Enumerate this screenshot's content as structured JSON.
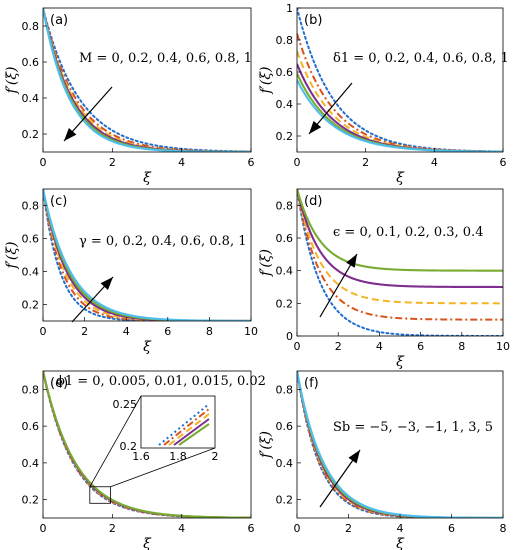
{
  "figure": {
    "colors": {
      "blue": "#1f6fd1",
      "red": "#d9531e",
      "yellow": "#f5b326",
      "purple": "#7e2f8e",
      "green": "#77ac30",
      "cyan": "#4dbeee"
    }
  },
  "chart_data": [
    {
      "type": "line",
      "panel": "(a)",
      "xlabel": "ξ",
      "ylabel": "f′(ξ)",
      "xlim": [
        0,
        6
      ],
      "ylim": [
        0.1,
        0.9
      ],
      "xticks": [
        0,
        2,
        4,
        6
      ],
      "yticks": [
        0.2,
        0.4,
        0.6,
        0.8
      ],
      "xtick_labels": [
        "0",
        "2",
        "4",
        "6"
      ],
      "ytick_labels": [
        "0.2",
        "0.4",
        "0.6",
        "0.8"
      ],
      "annotation": "M = 0, 0.2, 0.4, 0.6, 0.8, 1",
      "arrow_direction": "down-left",
      "series": [
        {
          "color": "blue",
          "style": "dotted",
          "start": 0.9,
          "end": 0.1,
          "decay": 0.95
        },
        {
          "color": "red",
          "style": "dashdot",
          "start": 0.9,
          "end": 0.1,
          "decay": 1.05
        },
        {
          "color": "yellow",
          "style": "dashed",
          "start": 0.9,
          "end": 0.1,
          "decay": 1.12
        },
        {
          "color": "purple",
          "style": "solid",
          "start": 0.9,
          "end": 0.1,
          "decay": 1.18
        },
        {
          "color": "green",
          "style": "solid",
          "start": 0.9,
          "end": 0.1,
          "decay": 1.24
        },
        {
          "color": "cyan",
          "style": "solid",
          "start": 0.9,
          "end": 0.1,
          "decay": 1.3
        }
      ]
    },
    {
      "type": "line",
      "panel": "(b)",
      "xlabel": "ξ",
      "ylabel": "f′(ξ)",
      "xlim": [
        0,
        6
      ],
      "ylim": [
        0.1,
        1.0
      ],
      "xticks": [
        0,
        2,
        4,
        6
      ],
      "yticks": [
        0.2,
        0.4,
        0.6,
        0.8,
        1.0
      ],
      "xtick_labels": [
        "0",
        "2",
        "4",
        "6"
      ],
      "ytick_labels": [
        "0.2",
        "0.4",
        "0.6",
        "0.8",
        "1"
      ],
      "annotation": "δ1 = 0, 0.2, 0.4, 0.6, 0.8, 1",
      "arrow_direction": "down-left",
      "series": [
        {
          "color": "blue",
          "style": "dotted",
          "start": 1.0,
          "end": 0.1,
          "decay": 0.95
        },
        {
          "color": "red",
          "style": "dashdot",
          "start": 0.84,
          "end": 0.1,
          "decay": 0.95
        },
        {
          "color": "yellow",
          "style": "dashed",
          "start": 0.73,
          "end": 0.1,
          "decay": 0.95
        },
        {
          "color": "purple",
          "style": "solid",
          "start": 0.65,
          "end": 0.1,
          "decay": 0.95
        },
        {
          "color": "green",
          "style": "solid",
          "start": 0.59,
          "end": 0.1,
          "decay": 0.95
        },
        {
          "color": "cyan",
          "style": "solid",
          "start": 0.55,
          "end": 0.1,
          "decay": 0.95
        }
      ]
    },
    {
      "type": "line",
      "panel": "(c)",
      "xlabel": "ξ",
      "ylabel": "f′(ξ)",
      "xlim": [
        0,
        10
      ],
      "ylim": [
        0.1,
        0.9
      ],
      "xticks": [
        0,
        2,
        4,
        6,
        8,
        10
      ],
      "yticks": [
        0.2,
        0.4,
        0.6,
        0.8
      ],
      "xtick_labels": [
        "0",
        "2",
        "4",
        "6",
        "8",
        "10"
      ],
      "ytick_labels": [
        "0.2",
        "0.4",
        "0.6",
        "0.8"
      ],
      "annotation": "γ = 0, 0.2, 0.4, 0.6, 0.8, 1",
      "arrow_direction": "up-right",
      "series": [
        {
          "color": "blue",
          "style": "dotted",
          "start": 0.9,
          "end": 0.1,
          "decay": 1.2
        },
        {
          "color": "red",
          "style": "dashdot",
          "start": 0.9,
          "end": 0.1,
          "decay": 1.05
        },
        {
          "color": "yellow",
          "style": "dashed",
          "start": 0.9,
          "end": 0.1,
          "decay": 0.94
        },
        {
          "color": "purple",
          "style": "solid",
          "start": 0.9,
          "end": 0.1,
          "decay": 0.86
        },
        {
          "color": "green",
          "style": "solid",
          "start": 0.9,
          "end": 0.1,
          "decay": 0.8
        },
        {
          "color": "cyan",
          "style": "solid",
          "start": 0.9,
          "end": 0.1,
          "decay": 0.75
        }
      ]
    },
    {
      "type": "line",
      "panel": "(d)",
      "xlabel": "ξ",
      "ylabel": "f′(ξ)",
      "xlim": [
        0,
        10
      ],
      "ylim": [
        0.0,
        0.9
      ],
      "xticks": [
        0,
        2,
        4,
        6,
        8,
        10
      ],
      "yticks": [
        0.0,
        0.2,
        0.4,
        0.6,
        0.8
      ],
      "xtick_labels": [
        "0",
        "2",
        "4",
        "6",
        "8",
        "10"
      ],
      "ytick_labels": [
        "0",
        "0.2",
        "0.4",
        "0.6",
        "0.8"
      ],
      "annotation": "ϵ = 0, 0.1, 0.2, 0.3, 0.4",
      "arrow_direction": "up-right",
      "series": [
        {
          "color": "blue",
          "style": "dotted",
          "start": 0.9,
          "end": 0.0,
          "decay": 0.9
        },
        {
          "color": "red",
          "style": "dashdot",
          "start": 0.9,
          "end": 0.1,
          "decay": 0.9
        },
        {
          "color": "yellow",
          "style": "dashed",
          "start": 0.9,
          "end": 0.2,
          "decay": 0.9
        },
        {
          "color": "purple",
          "style": "solid",
          "start": 0.9,
          "end": 0.3,
          "decay": 0.9
        },
        {
          "color": "green",
          "style": "solid",
          "start": 0.9,
          "end": 0.4,
          "decay": 0.9
        }
      ]
    },
    {
      "type": "line",
      "panel": "(e)",
      "xlabel": "ξ",
      "ylabel": "",
      "xlim": [
        0,
        6
      ],
      "ylim": [
        0.1,
        0.9
      ],
      "xticks": [
        0,
        2,
        4,
        6
      ],
      "yticks": [
        0.2,
        0.4,
        0.6,
        0.8
      ],
      "xtick_labels": [
        "0",
        "2",
        "4",
        "6"
      ],
      "ytick_labels": [
        "0.2",
        "0.4",
        "0.6",
        "0.8"
      ],
      "annotation": "ϕ1 = 0, 0.005, 0.01, 0.015, 0.02",
      "arrow_direction": "none",
      "inset": {
        "xlim": [
          1.6,
          2.0
        ],
        "ylim": [
          0.2,
          0.25
        ],
        "xtick_labels": [
          "1.6",
          "1.8",
          "2"
        ],
        "ytick_labels": [
          "0.2",
          "0.25"
        ],
        "zoom_region": {
          "x": [
            1.35,
            1.95
          ],
          "y": [
            0.18,
            0.27
          ]
        }
      },
      "series": [
        {
          "color": "blue",
          "style": "dotted",
          "start": 0.9,
          "end": 0.1,
          "decay": 1.13
        },
        {
          "color": "red",
          "style": "dashdot",
          "start": 0.9,
          "end": 0.1,
          "decay": 1.11
        },
        {
          "color": "yellow",
          "style": "dashed",
          "start": 0.9,
          "end": 0.1,
          "decay": 1.09
        },
        {
          "color": "purple",
          "style": "solid",
          "start": 0.9,
          "end": 0.1,
          "decay": 1.07
        },
        {
          "color": "green",
          "style": "solid",
          "start": 0.9,
          "end": 0.1,
          "decay": 1.05
        }
      ]
    },
    {
      "type": "line",
      "panel": "(f)",
      "xlabel": "ξ",
      "ylabel": "f′(ξ)",
      "xlim": [
        0,
        8
      ],
      "ylim": [
        0.1,
        0.9
      ],
      "xticks": [
        0,
        2,
        4,
        6,
        8
      ],
      "yticks": [
        0.2,
        0.4,
        0.6,
        0.8
      ],
      "xtick_labels": [
        "0",
        "2",
        "4",
        "6",
        "8"
      ],
      "ytick_labels": [
        "0.2",
        "0.4",
        "0.6",
        "0.8"
      ],
      "annotation": "Sb = −5, −3, −1, 1, 3, 5",
      "arrow_direction": "up-right",
      "series": [
        {
          "color": "blue",
          "style": "dotted",
          "start": 0.9,
          "end": 0.1,
          "decay": 1.15
        },
        {
          "color": "red",
          "style": "dashdot",
          "start": 0.9,
          "end": 0.1,
          "decay": 1.11
        },
        {
          "color": "yellow",
          "style": "dashed",
          "start": 0.9,
          "end": 0.1,
          "decay": 1.07
        },
        {
          "color": "purple",
          "style": "solid",
          "start": 0.9,
          "end": 0.1,
          "decay": 1.03
        },
        {
          "color": "green",
          "style": "solid",
          "start": 0.9,
          "end": 0.1,
          "decay": 0.99
        },
        {
          "color": "cyan",
          "style": "solid",
          "start": 0.9,
          "end": 0.1,
          "decay": 0.95
        }
      ]
    }
  ]
}
